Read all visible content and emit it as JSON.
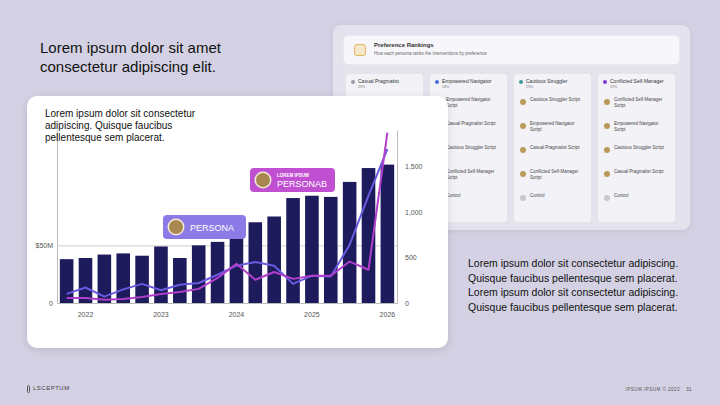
{
  "chart_data": {
    "type": "bar",
    "title": "Lorem ipsum dolor sit consectetur adipiscing. Quisque faucibus pellentesque sem placerat.",
    "categories": [
      null,
      "2022",
      null,
      null,
      null,
      "2023",
      null,
      null,
      null,
      "2024",
      null,
      null,
      null,
      "2025",
      null,
      null,
      null,
      "2026"
    ],
    "ylim": [
      0,
      150
    ],
    "yticks": [
      0,
      {
        "value": 50,
        "label": "$50M"
      }
    ],
    "y2lim": [
      0,
      1900
    ],
    "y2ticks": [
      0,
      500,
      {
        "value": 1000,
        "label": "1,000"
      },
      {
        "value": 1500,
        "label": "1,500"
      }
    ],
    "grid": true,
    "series": [
      {
        "type": "bar",
        "color": "#1d1b5c",
        "values": [
          38,
          39,
          42,
          43,
          41,
          49,
          39,
          50,
          53,
          62,
          70,
          75,
          91,
          93,
          92,
          105,
          117,
          120
        ]
      },
      {
        "type": "line",
        "axis": "y2",
        "color": "#6a5ae0",
        "values": [
          100,
          170,
          70,
          150,
          210,
          140,
          200,
          220,
          310,
          410,
          450,
          410,
          210,
          300,
          290,
          640,
          1180,
          1690
        ]
      },
      {
        "type": "line",
        "axis": "y2",
        "color": "#b23fcb",
        "values": [
          55,
          55,
          35,
          45,
          65,
          100,
          120,
          155,
          275,
          430,
          255,
          340,
          265,
          300,
          300,
          455,
          365,
          1870
        ]
      }
    ],
    "annotations": [
      {
        "text": "PERSONA",
        "color": "#8c7ae6"
      },
      {
        "label": "LOREM IPSUM",
        "text": "PERSONAB",
        "color": "#c04fd2"
      }
    ]
  },
  "slide": {
    "heading": "Lorem ipsum dolor sit amet consectetur adipiscing elit.",
    "body": "Lorem ipsum dolor sit consectetur adipiscing. Quisque faucibus pellentesque sem placerat. Lorem ipsum dolor sit consectetur adipiscing. Quisque faucibus pellentesque sem placerat.",
    "panel": {
      "title": "Preference Rankings",
      "subtitle": "How each persona ranks the interventions by preference",
      "columns": [
        {
          "title": "Casual Pragmatist",
          "share": "29%"
        },
        {
          "title": "Empowered Navigator",
          "share": "18%",
          "items": [
            "Empowered Navigator Script",
            "Casual Pragmatist Script",
            "Cautious Struggler Script",
            "Conflicted Self-Manager Script",
            "Control"
          ]
        },
        {
          "title": "Cautious Struggler",
          "share": "19%",
          "items": [
            "Cautious Struggler Script",
            "Empowered Navigator Script",
            "Casual Pragmatist Script",
            "Conflicted Self-Manager Script",
            "Control"
          ]
        },
        {
          "title": "Conflicted Self-Manager",
          "share": "19%",
          "items": [
            "Conflicted Self-Manager Script",
            "Empowered Navigator Script",
            "Cautious Struggler Script",
            "Casual Pragmatist Script",
            "Control"
          ]
        }
      ]
    },
    "footer": {
      "logo": "LSCEPTUM",
      "text": "IPSUM IPSUM © 2023",
      "page": "31"
    }
  }
}
